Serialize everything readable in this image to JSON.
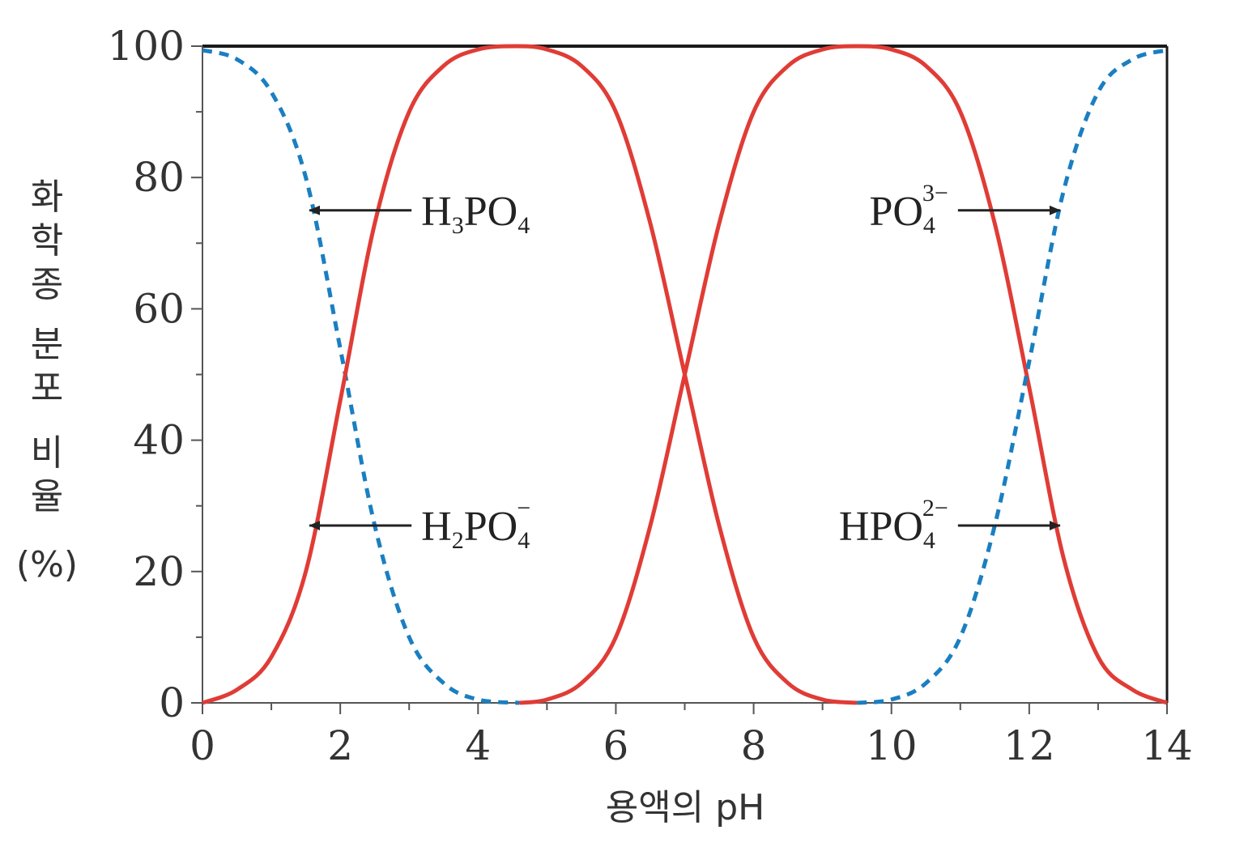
{
  "chart_data": {
    "type": "line",
    "xlabel": "용액의 pH",
    "ylabel": {
      "chars": [
        "화",
        "학",
        "종",
        " ",
        "분",
        "포",
        " ",
        "비",
        "율"
      ],
      "unit": "(%)"
    },
    "xlim": [
      0,
      14
    ],
    "ylim": [
      0,
      100
    ],
    "x_ticks": [
      "0",
      "2",
      "4",
      "6",
      "8",
      "10",
      "12",
      "14"
    ],
    "y_ticks": [
      "0",
      "20",
      "40",
      "60",
      "80",
      "100"
    ],
    "grid": false,
    "series": [
      {
        "species": "H3PO4",
        "style": "dashed",
        "color": "#1a7fc1",
        "x": [
          0,
          0.5,
          1.0,
          1.5,
          2.0,
          2.5,
          3.0,
          3.5,
          4.0,
          4.6
        ],
        "y": [
          99.4,
          98,
          93,
          80,
          54,
          27,
          10,
          3,
          0.5,
          0
        ]
      },
      {
        "species": "H2PO4-",
        "style": "solid",
        "color": "#e03c36",
        "x": [
          0,
          0.5,
          1.0,
          1.5,
          2.0,
          2.5,
          3.0,
          3.5,
          4.0,
          4.55,
          5.0,
          5.5,
          6.0,
          6.5,
          7.0,
          7.5,
          8.0,
          8.5,
          9.0,
          9.5
        ],
        "y": [
          0,
          2,
          7,
          20,
          46,
          73,
          90,
          97,
          99.5,
          100,
          99.5,
          97,
          90,
          73,
          50,
          27,
          10,
          3,
          0.5,
          0
        ]
      },
      {
        "species": "HPO4 2-",
        "style": "solid",
        "color": "#e03c36",
        "x": [
          4.6,
          5.0,
          5.5,
          6.0,
          6.5,
          7.0,
          7.5,
          8.0,
          8.5,
          9.0,
          9.5,
          10.0,
          10.5,
          11.0,
          11.5,
          12.0,
          12.5,
          13.0,
          13.5,
          14.0
        ],
        "y": [
          0,
          0.5,
          3,
          10,
          27,
          50,
          73,
          90,
          97,
          99.5,
          100,
          99.5,
          97,
          90,
          73,
          48,
          22,
          7,
          2,
          0
        ]
      },
      {
        "species": "PO4 3-",
        "style": "dashed",
        "color": "#1a7fc1",
        "x": [
          9.5,
          10.0,
          10.5,
          11.0,
          11.5,
          12.0,
          12.5,
          13.0,
          13.5,
          14.0
        ],
        "y": [
          0,
          0.5,
          3,
          10,
          27,
          52,
          78,
          93,
          98,
          99.4
        ]
      }
    ],
    "annotations": [
      {
        "base": "H",
        "sub": "3",
        "mid": "PO",
        "sub2": "4",
        "sup": "",
        "arrow": "left",
        "at": [
          2.0,
          75
        ]
      },
      {
        "base": "H",
        "sub": "2",
        "mid": "PO",
        "sub2": "4",
        "sup": "−",
        "arrow": "left",
        "at": [
          2.0,
          27
        ]
      },
      {
        "base": "",
        "sub": "",
        "mid": "PO",
        "sub2": "4",
        "sup": "3−",
        "arrow": "right",
        "at": [
          12.0,
          75
        ]
      },
      {
        "base": "H",
        "sub": "",
        "mid": "PO",
        "sub2": "4",
        "sup": "2−",
        "arrow": "right",
        "at": [
          12.0,
          27
        ]
      }
    ]
  }
}
